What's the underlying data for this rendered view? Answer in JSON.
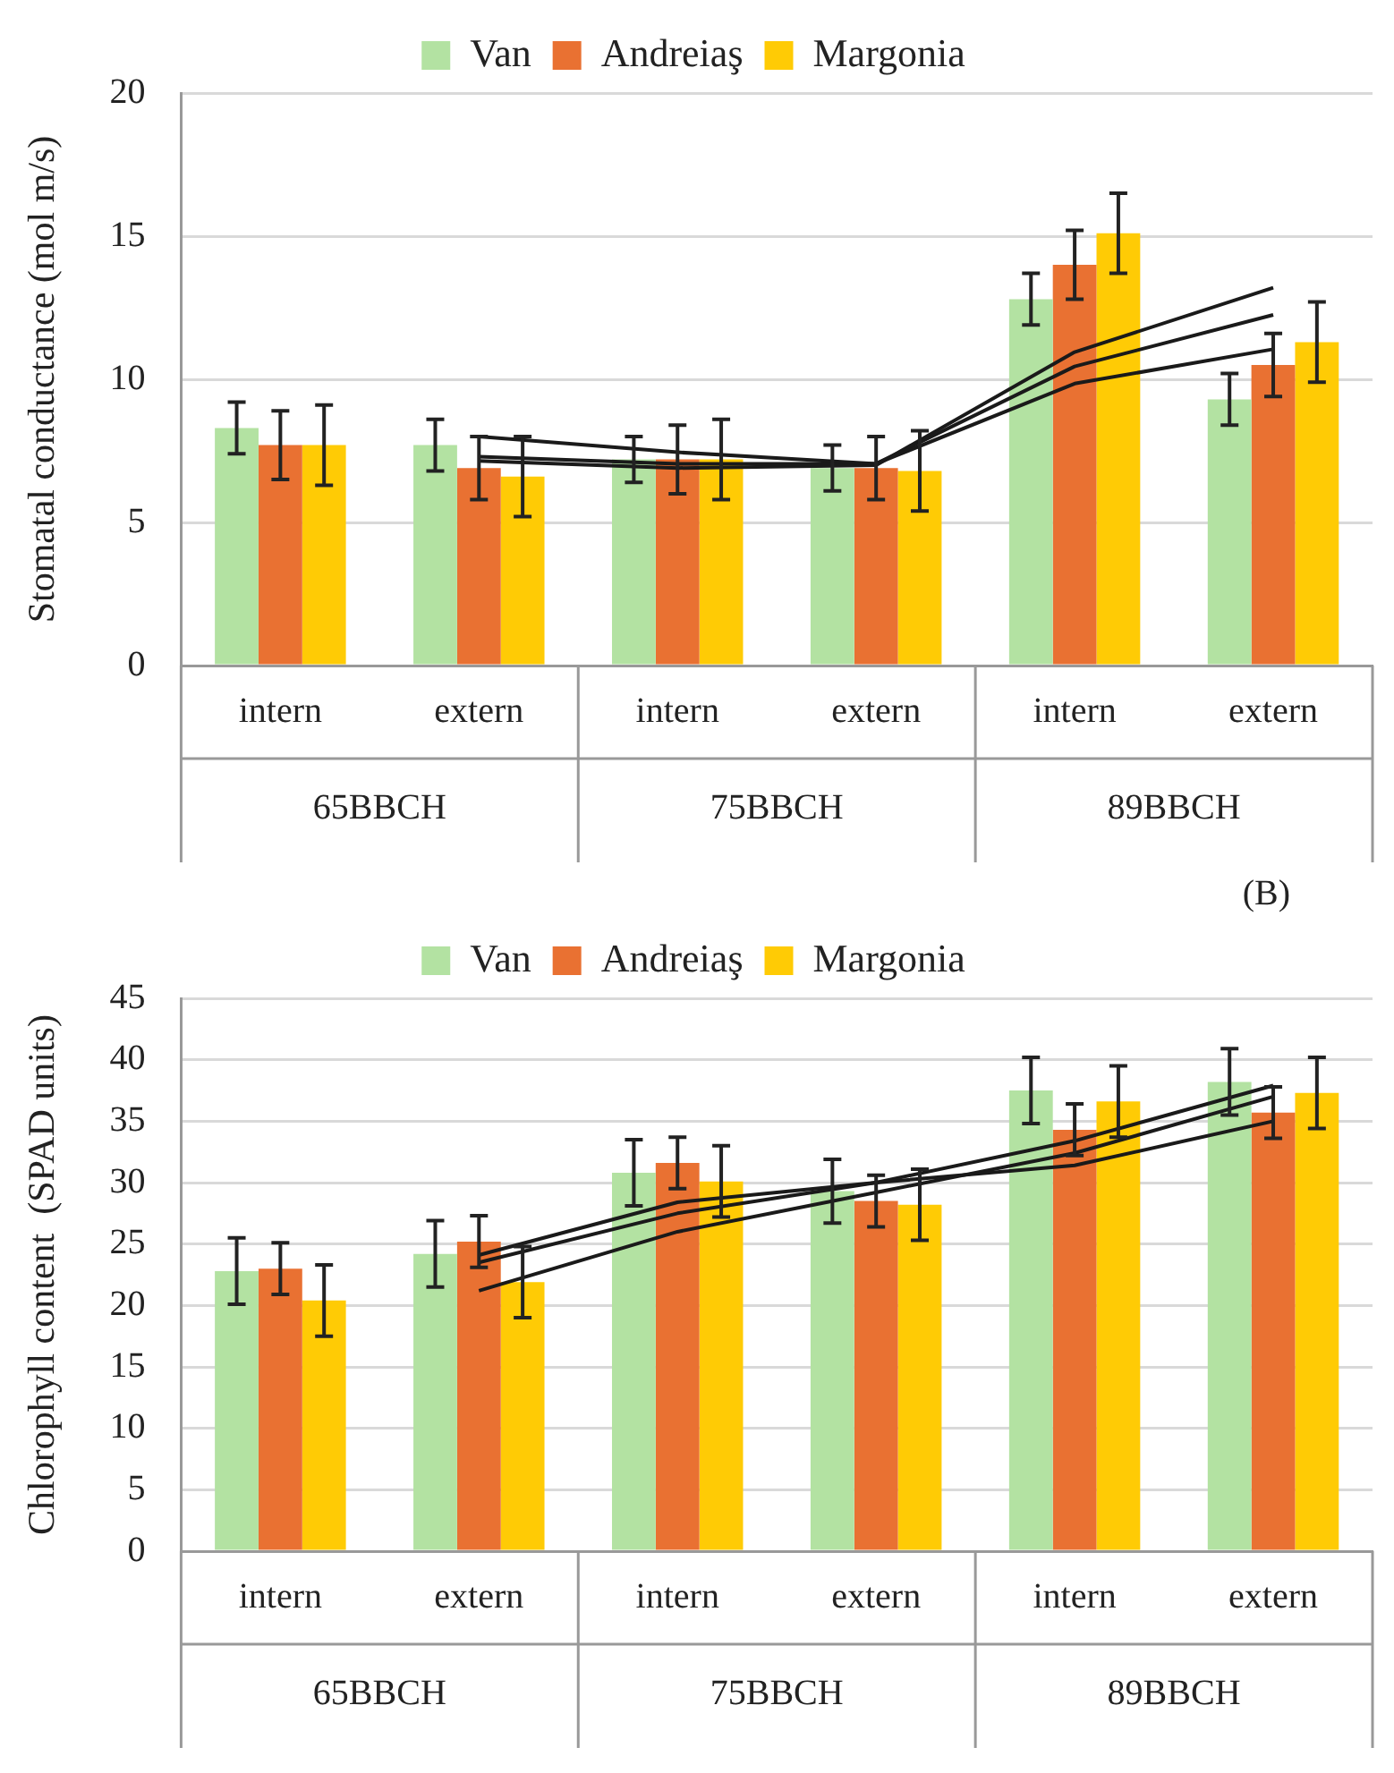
{
  "chart_data": [
    {
      "type": "bar",
      "ylabel": "Stomatal conductance (mol m/s)",
      "categories": [
        "intern",
        "extern",
        "intern",
        "extern",
        "intern",
        "extern"
      ],
      "annotations": [
        "65BBCH",
        "75BBCH",
        "89BBCH"
      ],
      "ylim": [
        0,
        20
      ],
      "yticks": [
        0,
        5,
        10,
        15,
        20
      ],
      "grid": "y",
      "legend": "top",
      "series": [
        {
          "name": "Van",
          "color": "#b3e2a2",
          "values": [
            8.3,
            7.7,
            7.2,
            6.9,
            12.8,
            9.3
          ],
          "errors": [
            0.9,
            0.9,
            0.8,
            0.8,
            0.9,
            0.9
          ]
        },
        {
          "name": "Andreiaş",
          "color": "#e97132",
          "values": [
            7.7,
            6.9,
            7.2,
            6.9,
            14.0,
            10.5
          ],
          "errors": [
            1.2,
            1.1,
            1.2,
            1.1,
            1.2,
            1.1
          ]
        },
        {
          "name": "Margonia",
          "color": "#ffcb05",
          "values": [
            7.7,
            6.6,
            7.2,
            6.8,
            15.1,
            11.3
          ],
          "errors": [
            1.4,
            1.4,
            1.4,
            1.4,
            1.4,
            1.4
          ]
        },
        {
          "type": "line",
          "color": "#1a1a1a",
          "values": [
            null,
            8.0,
            7.45,
            7.05,
            9.85,
            11.05
          ]
        },
        {
          "type": "line",
          "color": "#1a1a1a",
          "values": [
            null,
            7.3,
            7.05,
            7.05,
            10.45,
            12.25
          ]
        },
        {
          "type": "line",
          "color": "#1a1a1a",
          "values": [
            null,
            7.15,
            6.9,
            7.0,
            10.95,
            13.2
          ]
        }
      ]
    },
    {
      "type": "bar",
      "ylabel": "Chlorophyll content  (SPAD units)",
      "categories": [
        "intern",
        "extern",
        "intern",
        "extern",
        "intern",
        "extern"
      ],
      "annotations": [
        "65BBCH",
        "75BBCH",
        "89BBCH",
        "(B)"
      ],
      "ylim": [
        0,
        45
      ],
      "yticks": [
        0,
        5,
        10,
        15,
        20,
        25,
        30,
        35,
        40,
        45
      ],
      "grid": "y",
      "legend": "top",
      "series": [
        {
          "name": "Van",
          "color": "#b3e2a2",
          "values": [
            22.8,
            24.2,
            30.8,
            29.3,
            37.5,
            38.2
          ],
          "errors": [
            2.7,
            2.7,
            2.7,
            2.6,
            2.7,
            2.7
          ]
        },
        {
          "name": "Andreiaş",
          "color": "#e97132",
          "values": [
            23.0,
            25.2,
            31.6,
            28.5,
            34.3,
            35.7
          ],
          "errors": [
            2.1,
            2.1,
            2.1,
            2.1,
            2.1,
            2.1
          ]
        },
        {
          "name": "Margonia",
          "color": "#ffcb05",
          "values": [
            20.4,
            21.9,
            30.1,
            28.2,
            36.6,
            37.3
          ],
          "errors": [
            2.9,
            2.9,
            2.9,
            2.9,
            2.9,
            2.9
          ]
        },
        {
          "type": "line",
          "color": "#1a1a1a",
          "values": [
            null,
            23.5,
            27.5,
            30.0,
            33.4,
            37.9
          ]
        },
        {
          "type": "line",
          "color": "#1a1a1a",
          "values": [
            null,
            24.1,
            28.4,
            30.0,
            31.4,
            35.0
          ]
        },
        {
          "type": "line",
          "color": "#1a1a1a",
          "values": [
            null,
            21.2,
            26.0,
            29.2,
            32.4,
            37.0
          ]
        }
      ]
    }
  ]
}
